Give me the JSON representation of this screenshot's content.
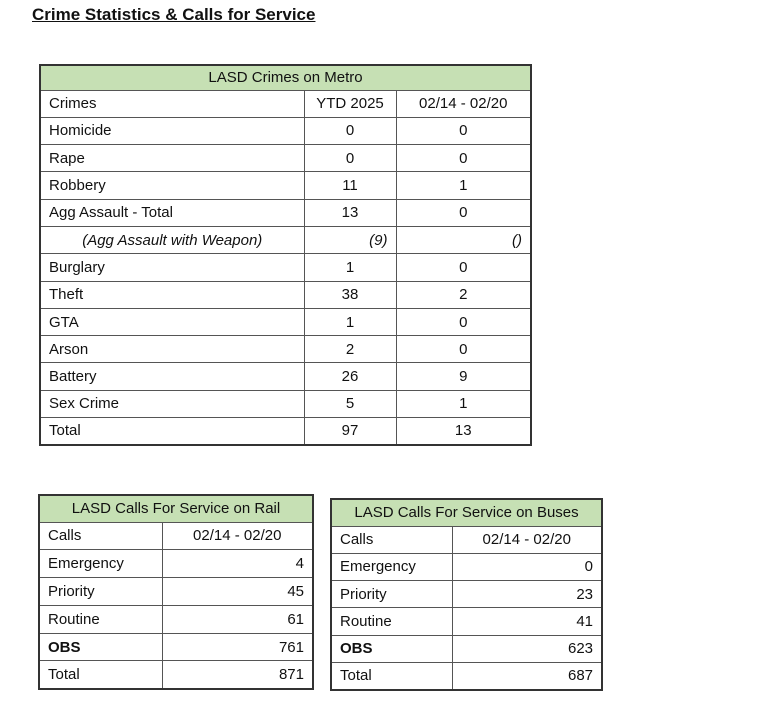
{
  "title": "Crime Statistics & Calls for Service",
  "crimes_table": {
    "title": "LASD Crimes on Metro",
    "header": [
      "Crimes",
      "YTD 2025",
      "02/14 - 02/20"
    ],
    "rows": [
      [
        "Homicide",
        "0",
        "0"
      ],
      [
        "Rape",
        "0",
        "0"
      ],
      [
        "Robbery",
        "11",
        "1"
      ],
      [
        "Agg Assault - Total",
        "13",
        "0"
      ],
      [
        "(Agg Assault with Weapon)",
        "(9)",
        "()"
      ],
      [
        "Burglary",
        "1",
        "0"
      ],
      [
        "Theft",
        "38",
        "2"
      ],
      [
        "GTA",
        "1",
        "0"
      ],
      [
        "Arson",
        "2",
        "0"
      ],
      [
        "Battery",
        "26",
        "9"
      ],
      [
        "Sex Crime",
        "5",
        "1"
      ],
      [
        "Total",
        "97",
        "13"
      ]
    ]
  },
  "rail_table": {
    "title": "LASD Calls For Service on Rail",
    "header": [
      "Calls",
      "02/14 - 02/20"
    ],
    "rows": [
      [
        "Emergency",
        "4"
      ],
      [
        "Priority",
        "45"
      ],
      [
        "Routine",
        "61"
      ],
      [
        "OBS",
        "761"
      ],
      [
        "Total",
        "871"
      ]
    ]
  },
  "bus_table": {
    "title": "LASD Calls For Service on Buses",
    "header": [
      "Calls",
      "02/14 - 02/20"
    ],
    "rows": [
      [
        "Emergency",
        "0"
      ],
      [
        "Priority",
        "23"
      ],
      [
        "Routine",
        "41"
      ],
      [
        "OBS",
        "623"
      ],
      [
        "Total",
        "687"
      ]
    ]
  }
}
